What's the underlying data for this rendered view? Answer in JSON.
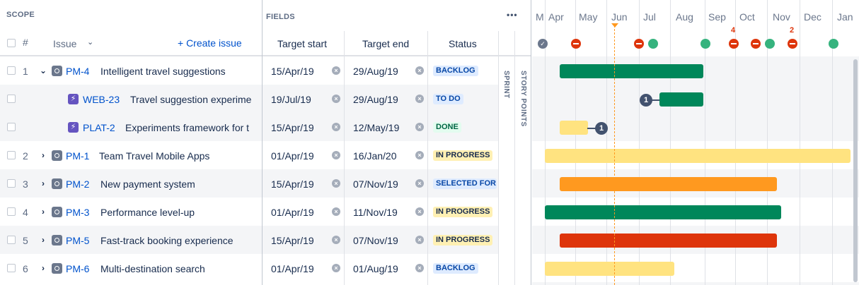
{
  "scope": {
    "label": "SCOPE",
    "hash_label": "#",
    "issue_label": "Issue",
    "create_label": "+ Create issue"
  },
  "fields": {
    "label": "FIELDS",
    "more_label": "•••",
    "target_start": "Target start",
    "target_end": "Target end",
    "status": "Status",
    "sprint": "SPRINT",
    "story_points": "STORY POINTS"
  },
  "timeline": {
    "months": [
      "M",
      "Apr",
      "May",
      "Jun",
      "Jul",
      "Aug",
      "Sep",
      "Oct",
      "Nov",
      "Dec",
      "Jan"
    ],
    "markers": [
      {
        "type": "grey"
      },
      {
        "type": "red"
      },
      {
        "type": "red"
      },
      {
        "type": "green"
      },
      {
        "type": "green"
      },
      {
        "type": "red",
        "count": "4"
      },
      {
        "type": "red"
      },
      {
        "type": "green"
      },
      {
        "type": "red",
        "count": "2"
      },
      {
        "type": "green"
      }
    ],
    "dependency_badges": [
      "1",
      "1"
    ],
    "colors": {
      "green": "#00875a",
      "yellow": "#ffe380",
      "orange": "#ff991f",
      "red": "#de350b",
      "today": "#ff991f"
    }
  },
  "rows": [
    {
      "num": "1",
      "expanded": true,
      "type": "epic",
      "key": "PM-4",
      "title": "Intelligent travel suggestions",
      "start": "15/Apr/19",
      "end": "29/Aug/19",
      "status": "BACKLOG",
      "status_color": "blue"
    },
    {
      "num": "",
      "type": "story",
      "key": "WEB-23",
      "title": "Travel suggestion experime",
      "start": "19/Jul/19",
      "end": "29/Aug/19",
      "status": "TO DO",
      "status_color": "blue"
    },
    {
      "num": "",
      "type": "story",
      "key": "PLAT-2",
      "title": "Experiments framework for t",
      "start": "15/Apr/19",
      "end": "12/May/19",
      "status": "DONE",
      "status_color": "green"
    },
    {
      "num": "2",
      "type": "epic",
      "key": "PM-1",
      "title": "Team Travel Mobile Apps",
      "start": "01/Apr/19",
      "end": "16/Jan/20",
      "status": "IN PROGRESS",
      "status_color": "yellow"
    },
    {
      "num": "3",
      "type": "epic",
      "key": "PM-2",
      "title": "New payment system",
      "start": "15/Apr/19",
      "end": "07/Nov/19",
      "status": "SELECTED FOR",
      "status_color": "blue"
    },
    {
      "num": "4",
      "type": "epic",
      "key": "PM-3",
      "title": "Performance level-up",
      "start": "01/Apr/19",
      "end": "11/Nov/19",
      "status": "IN PROGRESS",
      "status_color": "yellow"
    },
    {
      "num": "5",
      "type": "epic",
      "key": "PM-5",
      "title": "Fast-track booking experience",
      "start": "15/Apr/19",
      "end": "07/Nov/19",
      "status": "IN PROGRESS",
      "status_color": "yellow"
    },
    {
      "num": "6",
      "type": "epic",
      "key": "PM-6",
      "title": "Multi-destination search",
      "start": "01/Apr/19",
      "end": "01/Aug/19",
      "status": "BACKLOG",
      "status_color": "blue"
    }
  ]
}
